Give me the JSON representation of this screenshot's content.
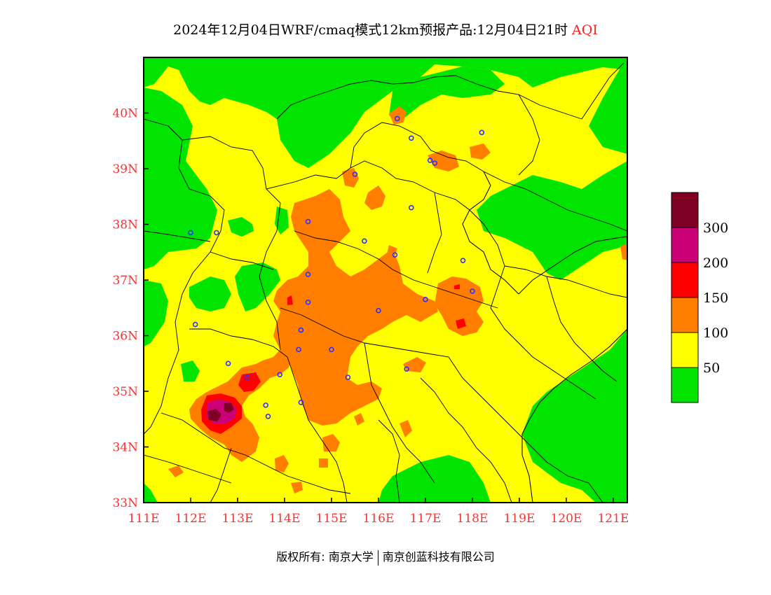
{
  "title": {
    "main": "2024年12月04日WRF/cmaq模式12km预报产品:12月04日21时",
    "variable": "AQI"
  },
  "colors": {
    "green": "#00e400",
    "yellow": "#ffff00",
    "orange": "#ff7e00",
    "red": "#ff0000",
    "purple": "#cc0077",
    "maroon": "#7e0023",
    "tick_text": "#ff3030",
    "city_marker": "#3030ff"
  },
  "axes": {
    "x_ticks": [
      "111E",
      "112E",
      "113E",
      "114E",
      "115E",
      "116E",
      "117E",
      "118E",
      "119E",
      "120E",
      "121E"
    ],
    "y_ticks": [
      "33N",
      "34N",
      "35N",
      "36N",
      "37N",
      "38N",
      "39N",
      "40N"
    ],
    "x_range": [
      111,
      121.3
    ],
    "y_range": [
      33,
      41
    ]
  },
  "legend": {
    "levels": [
      "300",
      "200",
      "150",
      "100",
      "50"
    ],
    "bands": [
      {
        "color": "#00e400",
        "range": "0-50"
      },
      {
        "color": "#ffff00",
        "range": "50-100"
      },
      {
        "color": "#ff7e00",
        "range": "100-150"
      },
      {
        "color": "#ff0000",
        "range": "150-200"
      },
      {
        "color": "#cc0077",
        "range": "200-300"
      },
      {
        "color": "#7e0023",
        "range": ">300"
      }
    ]
  },
  "cities": [
    {
      "lon": 116.4,
      "lat": 39.9
    },
    {
      "lon": 117.2,
      "lat": 39.1
    },
    {
      "lon": 115.5,
      "lat": 38.9
    },
    {
      "lon": 114.5,
      "lat": 38.05
    },
    {
      "lon": 116.7,
      "lat": 38.3
    },
    {
      "lon": 115.7,
      "lat": 37.7
    },
    {
      "lon": 116.35,
      "lat": 37.45
    },
    {
      "lon": 114.5,
      "lat": 37.1
    },
    {
      "lon": 114.5,
      "lat": 36.6
    },
    {
      "lon": 116.0,
      "lat": 36.45
    },
    {
      "lon": 117.0,
      "lat": 36.65
    },
    {
      "lon": 118.0,
      "lat": 36.8
    },
    {
      "lon": 117.8,
      "lat": 37.35
    },
    {
      "lon": 114.35,
      "lat": 36.1
    },
    {
      "lon": 114.3,
      "lat": 35.75
    },
    {
      "lon": 115.0,
      "lat": 35.75
    },
    {
      "lon": 115.35,
      "lat": 35.25
    },
    {
      "lon": 113.9,
      "lat": 35.3
    },
    {
      "lon": 113.2,
      "lat": 35.25
    },
    {
      "lon": 112.8,
      "lat": 35.5
    },
    {
      "lon": 112.1,
      "lat": 36.2
    },
    {
      "lon": 112.0,
      "lat": 37.85
    },
    {
      "lon": 112.55,
      "lat": 37.85
    },
    {
      "lon": 113.6,
      "lat": 34.75
    },
    {
      "lon": 114.35,
      "lat": 34.8
    },
    {
      "lon": 113.65,
      "lat": 34.55
    },
    {
      "lon": 116.6,
      "lat": 35.4
    },
    {
      "lon": 117.1,
      "lat": 39.15
    },
    {
      "lon": 118.2,
      "lat": 39.65
    },
    {
      "lon": 116.7,
      "lat": 39.55
    }
  ],
  "footer": {
    "copyright": "版权所有: 南京大学",
    "company": "南京创蓝科技有限公司"
  }
}
